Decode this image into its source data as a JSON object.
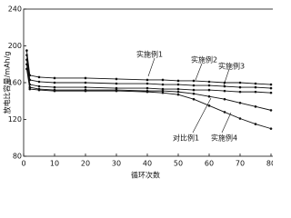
{
  "chart_data": {
    "type": "line",
    "ylabel": "放电比容量/mAh/g",
    "xlabel": "循环次数",
    "x": [
      1,
      2,
      5,
      10,
      20,
      30,
      40,
      45,
      50,
      55,
      60,
      65,
      70,
      75,
      80
    ],
    "series": [
      {
        "name": "实施例1",
        "color": "#111111",
        "values": [
          195,
          168,
          166,
          165,
          165,
          164,
          163,
          163,
          162,
          162,
          161,
          160,
          160,
          159,
          158
        ]
      },
      {
        "name": "实施例2",
        "color": "#111111",
        "values": [
          190,
          163,
          161,
          160,
          160,
          159,
          159,
          158,
          158,
          157,
          157,
          156,
          155,
          155,
          154
        ]
      },
      {
        "name": "实施例3",
        "color": "#111111",
        "values": [
          185,
          158,
          156,
          155,
          155,
          154,
          154,
          153,
          153,
          152,
          152,
          151,
          150,
          150,
          149
        ]
      },
      {
        "name": "对比例1",
        "color": "#111111",
        "values": [
          180,
          155,
          153,
          152,
          152,
          152,
          151,
          151,
          150,
          148,
          145,
          142,
          138,
          134,
          130
        ]
      },
      {
        "name": "实施例4",
        "color": "#111111",
        "values": [
          175,
          153,
          152,
          151,
          151,
          151,
          150,
          149,
          147,
          142,
          135,
          128,
          121,
          115,
          110
        ]
      }
    ],
    "xlim": [
      0,
      80
    ],
    "xticks": [
      0,
      10,
      20,
      30,
      40,
      50,
      60,
      70,
      80
    ],
    "ylim": [
      80,
      240
    ],
    "yticks": [
      80,
      120,
      160,
      200,
      240
    ]
  }
}
